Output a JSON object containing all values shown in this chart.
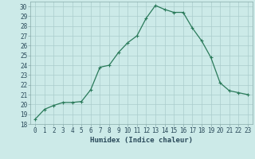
{
  "x": [
    0,
    1,
    2,
    3,
    4,
    5,
    6,
    7,
    8,
    9,
    10,
    11,
    12,
    13,
    14,
    15,
    16,
    17,
    18,
    19,
    20,
    21,
    22,
    23
  ],
  "y": [
    18.5,
    19.5,
    19.9,
    20.2,
    20.2,
    20.3,
    21.5,
    23.8,
    24.0,
    25.3,
    26.3,
    27.0,
    28.8,
    30.1,
    29.7,
    29.4,
    29.4,
    27.8,
    26.5,
    24.8,
    22.2,
    21.4,
    21.2,
    21.0
  ],
  "xlabel": "Humidex (Indice chaleur)",
  "line_color": "#2a7a5a",
  "marker": "+",
  "bg_color": "#cceae8",
  "grid_color": "#aacccc",
  "ylim": [
    18,
    30.5
  ],
  "xlim": [
    -0.5,
    23.5
  ],
  "yticks": [
    18,
    19,
    20,
    21,
    22,
    23,
    24,
    25,
    26,
    27,
    28,
    29,
    30
  ],
  "xticks": [
    0,
    1,
    2,
    3,
    4,
    5,
    6,
    7,
    8,
    9,
    10,
    11,
    12,
    13,
    14,
    15,
    16,
    17,
    18,
    19,
    20,
    21,
    22,
    23
  ],
  "tick_fontsize": 5.5,
  "xlabel_fontsize": 6.5,
  "linewidth": 0.9,
  "markersize": 3.5
}
